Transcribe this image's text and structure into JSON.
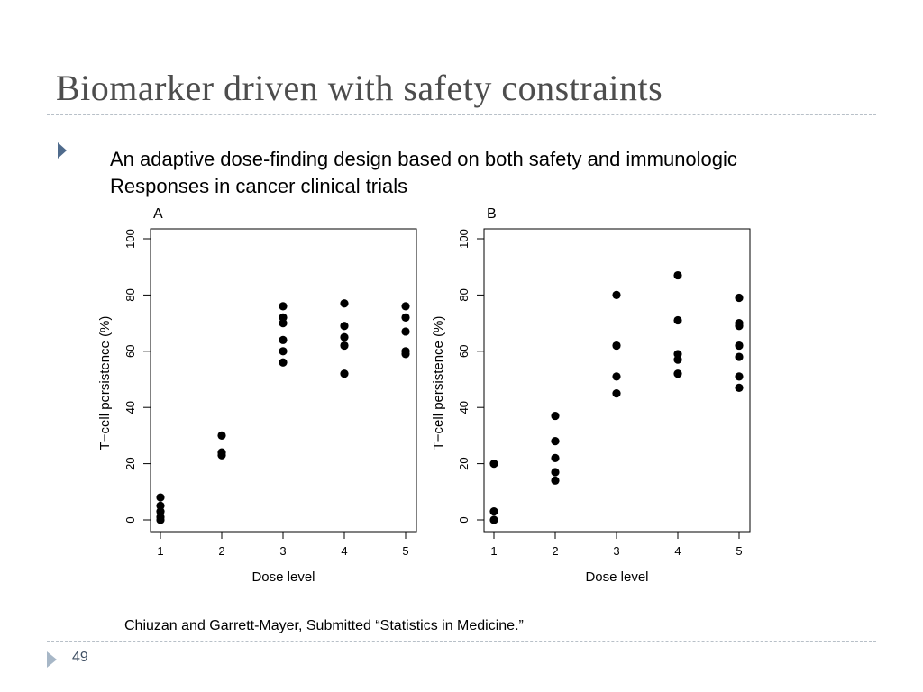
{
  "slide": {
    "title": "Biomarker driven with safety constraints",
    "subtitle_line1": "An adaptive dose-finding design based on both safety and immunologic",
    "subtitle_line2": "Responses in cancer clinical trials",
    "citation": "Chiuzan and Garrett-Mayer, Submitted “Statistics in Medicine.”",
    "page_number": "49"
  },
  "chart_data": [
    {
      "type": "scatter",
      "panel_label": "A",
      "xlabel": "Dose level",
      "ylabel": "T−cell persistence (%)",
      "xlim": [
        1,
        5
      ],
      "ylim": [
        0,
        100
      ],
      "xticks": [
        1,
        2,
        3,
        4,
        5
      ],
      "yticks": [
        0,
        20,
        40,
        60,
        80,
        100
      ],
      "points": [
        {
          "x": 1,
          "y": 8
        },
        {
          "x": 1,
          "y": 5
        },
        {
          "x": 1,
          "y": 3
        },
        {
          "x": 1,
          "y": 1
        },
        {
          "x": 1,
          "y": 0
        },
        {
          "x": 2,
          "y": 30
        },
        {
          "x": 2,
          "y": 24
        },
        {
          "x": 2,
          "y": 23
        },
        {
          "x": 3,
          "y": 76
        },
        {
          "x": 3,
          "y": 72
        },
        {
          "x": 3,
          "y": 70
        },
        {
          "x": 3,
          "y": 64
        },
        {
          "x": 3,
          "y": 60
        },
        {
          "x": 3,
          "y": 56
        },
        {
          "x": 4,
          "y": 77
        },
        {
          "x": 4,
          "y": 69
        },
        {
          "x": 4,
          "y": 65
        },
        {
          "x": 4,
          "y": 62
        },
        {
          "x": 4,
          "y": 52
        },
        {
          "x": 5,
          "y": 76
        },
        {
          "x": 5,
          "y": 72
        },
        {
          "x": 5,
          "y": 67
        },
        {
          "x": 5,
          "y": 60
        },
        {
          "x": 5,
          "y": 59
        }
      ]
    },
    {
      "type": "scatter",
      "panel_label": "B",
      "xlabel": "Dose level",
      "ylabel": "T−cell persistence (%)",
      "xlim": [
        1,
        5
      ],
      "ylim": [
        0,
        100
      ],
      "xticks": [
        1,
        2,
        3,
        4,
        5
      ],
      "yticks": [
        0,
        20,
        40,
        60,
        80,
        100
      ],
      "points": [
        {
          "x": 1,
          "y": 20
        },
        {
          "x": 1,
          "y": 3
        },
        {
          "x": 1,
          "y": 0
        },
        {
          "x": 2,
          "y": 37
        },
        {
          "x": 2,
          "y": 28
        },
        {
          "x": 2,
          "y": 22
        },
        {
          "x": 2,
          "y": 17
        },
        {
          "x": 2,
          "y": 14
        },
        {
          "x": 3,
          "y": 80
        },
        {
          "x": 3,
          "y": 62
        },
        {
          "x": 3,
          "y": 51
        },
        {
          "x": 3,
          "y": 45
        },
        {
          "x": 4,
          "y": 87
        },
        {
          "x": 4,
          "y": 71
        },
        {
          "x": 4,
          "y": 59
        },
        {
          "x": 4,
          "y": 57
        },
        {
          "x": 4,
          "y": 52
        },
        {
          "x": 5,
          "y": 79
        },
        {
          "x": 5,
          "y": 70
        },
        {
          "x": 5,
          "y": 69
        },
        {
          "x": 5,
          "y": 62
        },
        {
          "x": 5,
          "y": 58
        },
        {
          "x": 5,
          "y": 51
        },
        {
          "x": 5,
          "y": 47
        }
      ]
    }
  ]
}
